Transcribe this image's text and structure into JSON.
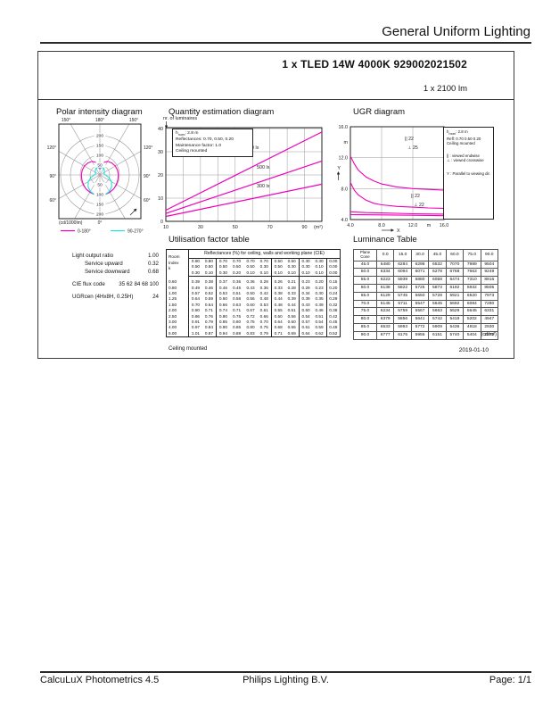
{
  "page": {
    "header_title": "General Uniform Lighting",
    "date": "2019-01-10",
    "footer": {
      "left": "CalcuLuX Photometrics 4.5",
      "center": "Philips Lighting B.V.",
      "right": "Page: 1/1"
    }
  },
  "product": {
    "title": "1 x TLED 14W 4000K 929002021502",
    "lumen": "1 x 2100 lm"
  },
  "colors": {
    "magenta": "#ee00bb",
    "cyan": "#20dde0",
    "grid": "#9a9a9a",
    "ink": "#222222"
  },
  "polar": {
    "title": "Polar intensity diagram",
    "unit_label": "(cd/1000lm)",
    "bottom_label": "0°",
    "angle_labels_top": [
      "150°",
      "180°",
      "150°"
    ],
    "angle_labels_sides": [
      "120°",
      "90°",
      "60°"
    ],
    "ring_values": [
      50,
      100,
      150,
      200
    ],
    "legend": [
      {
        "label": "0-180°"
      },
      {
        "label": "90-270°"
      }
    ],
    "curves": {
      "c0_180": [
        [
          0,
          105
        ],
        [
          15,
          104
        ],
        [
          30,
          102
        ],
        [
          45,
          100
        ],
        [
          60,
          97
        ],
        [
          75,
          95
        ],
        [
          90,
          94
        ],
        [
          105,
          93
        ],
        [
          120,
          91
        ],
        [
          135,
          86
        ],
        [
          150,
          80
        ],
        [
          160,
          68
        ],
        [
          168,
          50
        ],
        [
          174,
          34
        ],
        [
          178,
          32
        ],
        [
          180,
          55
        ]
      ],
      "c90_270": [
        [
          0,
          108
        ],
        [
          15,
          104
        ],
        [
          30,
          97
        ],
        [
          45,
          85
        ],
        [
          60,
          68
        ],
        [
          75,
          47
        ],
        [
          90,
          28
        ],
        [
          105,
          22
        ],
        [
          120,
          26
        ],
        [
          135,
          33
        ],
        [
          150,
          38
        ],
        [
          165,
          41
        ],
        [
          180,
          34
        ]
      ]
    }
  },
  "quantity": {
    "title": "Quantity estimation diagram",
    "ylabel": "nr. of luminaires",
    "x_unit": "(m²)",
    "yticks": [
      0,
      10,
      20,
      30,
      40
    ],
    "xticks": [
      10,
      30,
      50,
      70,
      90
    ],
    "info": {
      "h": "h",
      "h_sub": "room",
      "h_rest": ": 2.8 m",
      "lines": [
        "Reflectances:  0.70, 0.50, 0.20",
        "Maintenance factor:  1.0",
        "Ceiling mounted"
      ]
    },
    "lines": [
      {
        "label": "750 lx",
        "points": [
          [
            10,
            4.8
          ],
          [
            100,
            38.5
          ]
        ]
      },
      {
        "label": "500 lx",
        "points": [
          [
            10,
            3.4
          ],
          [
            100,
            26.0
          ]
        ]
      },
      {
        "label": "300 lx",
        "points": [
          [
            10,
            2.1
          ],
          [
            100,
            16.0
          ]
        ]
      }
    ]
  },
  "ugr": {
    "title": "UGR diagram",
    "xtick_labels": [
      "4.0",
      "8.0",
      "12.0",
      "16.0"
    ],
    "ytick_labels": [
      "4.0",
      "8.0",
      "12.0",
      "16.0"
    ],
    "xtick_values": [
      4,
      8,
      12,
      16
    ],
    "ytick_values": [
      4,
      8,
      12,
      16
    ],
    "meter_label": "m",
    "x_axis_label": "X",
    "y_axis_label": "Y",
    "annotations_top": [
      "|| 22",
      "⊥ 25"
    ],
    "annotations_bottom": [
      "|| 22",
      "⊥ 22"
    ],
    "legend": {
      "h": "h",
      "h_sub": "room",
      "h_rest": ": 2.8 m",
      "lines": [
        "Refl: 0.70 0.50 0.20",
        "Ceiling mounted"
      ],
      "sym1": "|| : viewed endwise",
      "sym2": "⊥ : viewed crosswise",
      "sym3": "Y : Parallel to viewing dir."
    },
    "curves": [
      [
        [
          4,
          12.2
        ],
        [
          4.5,
          11.2
        ],
        [
          5,
          10.4
        ],
        [
          6,
          9.5
        ],
        [
          7,
          9.0
        ],
        [
          8,
          8.6
        ],
        [
          10,
          8.2
        ],
        [
          12,
          8.0
        ],
        [
          14,
          7.9
        ],
        [
          16,
          7.8
        ]
      ],
      [
        [
          4,
          8.8
        ],
        [
          4.5,
          7.8
        ],
        [
          5,
          7.2
        ],
        [
          6,
          6.5
        ],
        [
          7,
          6.1
        ],
        [
          8,
          5.9
        ],
        [
          10,
          5.7
        ],
        [
          12,
          5.6
        ],
        [
          14,
          5.5
        ],
        [
          16,
          5.45
        ]
      ],
      [
        [
          4,
          5.0
        ],
        [
          6,
          4.9
        ],
        [
          8,
          4.85
        ],
        [
          12,
          4.75
        ],
        [
          16,
          4.7
        ]
      ],
      [
        [
          4,
          4.65
        ],
        [
          8,
          4.6
        ],
        [
          12,
          4.55
        ],
        [
          16,
          4.5
        ]
      ]
    ]
  },
  "photometric": {
    "rows": [
      {
        "label": "Light output ratio",
        "value": "1.00"
      },
      {
        "label": "Service upward",
        "value": "0.32"
      },
      {
        "label": "Service downward",
        "value": "0.68"
      },
      {
        "label": "CIE flux code",
        "value": "35 62 84 68 100"
      },
      {
        "label": "UGRcen (4Hx8H, 0.25H)",
        "value": "24"
      }
    ]
  },
  "utilisation": {
    "title": "Utilisation factor table",
    "header": "Reflectances (%) for ceiling, walls and working plane (CIE)",
    "row_header": [
      "Room",
      "Index",
      "k"
    ],
    "ceiling": [
      "0.80",
      "0.80",
      "0.70",
      "0.70",
      "0.70",
      "0.70",
      "0.50",
      "0.50",
      "0.30",
      "0.30",
      "0.00"
    ],
    "walls": [
      "0.50",
      "0.50",
      "0.50",
      "0.50",
      "0.50",
      "0.30",
      "0.50",
      "0.30",
      "0.30",
      "0.10",
      "0.00"
    ],
    "floor": [
      "0.30",
      "0.10",
      "0.30",
      "0.20",
      "0.10",
      "0.10",
      "0.10",
      "0.10",
      "0.10",
      "0.10",
      "0.00"
    ],
    "rows": [
      {
        "k": "0.60",
        "v": [
          "0.39",
          "0.38",
          "0.37",
          "0.36",
          "0.36",
          "0.28",
          "0.26",
          "0.21",
          "0.23",
          "0.20",
          "0.15"
        ]
      },
      {
        "k": "0.80",
        "v": [
          "0.49",
          "0.46",
          "0.46",
          "0.45",
          "0.43",
          "0.36",
          "0.33",
          "0.28",
          "0.29",
          "0.23",
          "0.20"
        ]
      },
      {
        "k": "1.00",
        "v": [
          "0.57",
          "0.52",
          "0.53",
          "0.51",
          "0.50",
          "0.42",
          "0.38",
          "0.33",
          "0.34",
          "0.30",
          "0.24"
        ]
      },
      {
        "k": "1.25",
        "v": [
          "0.64",
          "0.59",
          "0.60",
          "0.58",
          "0.56",
          "0.48",
          "0.44",
          "0.39",
          "0.39",
          "0.35",
          "0.29"
        ]
      },
      {
        "k": "1.50",
        "v": [
          "0.70",
          "0.64",
          "0.66",
          "0.63",
          "0.60",
          "0.53",
          "0.48",
          "0.44",
          "0.43",
          "0.39",
          "0.32"
        ]
      },
      {
        "k": "2.00",
        "v": [
          "0.80",
          "0.71",
          "0.74",
          "0.71",
          "0.67",
          "0.61",
          "0.55",
          "0.51",
          "0.50",
          "0.46",
          "0.38"
        ]
      },
      {
        "k": "2.50",
        "v": [
          "0.86",
          "0.76",
          "0.80",
          "0.76",
          "0.72",
          "0.66",
          "0.60",
          "0.56",
          "0.54",
          "0.51",
          "0.42"
        ]
      },
      {
        "k": "3.00",
        "v": [
          "0.91",
          "0.79",
          "0.85",
          "0.80",
          "0.75",
          "0.70",
          "0.64",
          "0.60",
          "0.57",
          "0.54",
          "0.45"
        ]
      },
      {
        "k": "4.00",
        "v": [
          "0.97",
          "0.84",
          "0.90",
          "0.85",
          "0.80",
          "0.75",
          "0.68",
          "0.65",
          "0.61",
          "0.59",
          "0.49"
        ]
      },
      {
        "k": "5.00",
        "v": [
          "1.01",
          "0.87",
          "0.94",
          "0.88",
          "0.83",
          "0.79",
          "0.71",
          "0.69",
          "0.64",
          "0.62",
          "0.52"
        ]
      }
    ],
    "footnote": "Ceiling mounted"
  },
  "luminance": {
    "title": "Luminance Table",
    "corner": [
      "Plane",
      "Cone"
    ],
    "cols": [
      "0.0",
      "15.0",
      "30.0",
      "45.0",
      "60.0",
      "75.0",
      "90.0"
    ],
    "rows": [
      {
        "angle": "45.0",
        "v": [
          "6480",
          "6284",
          "6298",
          "6532",
          "7070",
          "7989",
          "9504"
        ]
      },
      {
        "angle": "50.0",
        "v": [
          "6334",
          "6094",
          "6071",
          "6278",
          "6768",
          "7663",
          "9249"
        ]
      },
      {
        "angle": "55.0",
        "v": [
          "6223",
          "5939",
          "5880",
          "6058",
          "6474",
          "7310",
          "8916"
        ]
      },
      {
        "angle": "60.0",
        "v": [
          "6138",
          "5822",
          "5725",
          "5873",
          "6192",
          "6932",
          "8505"
        ]
      },
      {
        "angle": "65.0",
        "v": [
          "6129",
          "5745",
          "5650",
          "5728",
          "5921",
          "6520",
          "7973"
        ]
      },
      {
        "angle": "70.0",
        "v": [
          "6145",
          "5711",
          "5547",
          "5645",
          "5692",
          "6084",
          "7280"
        ]
      },
      {
        "angle": "75.0",
        "v": [
          "6234",
          "5759",
          "5567",
          "5663",
          "5529",
          "5645",
          "6331"
        ]
      },
      {
        "angle": "80.0",
        "v": [
          "6379",
          "5856",
          "5641",
          "5742",
          "5419",
          "5202",
          "4947"
        ]
      },
      {
        "angle": "85.0",
        "v": [
          "6533",
          "5993",
          "5772",
          "5909",
          "5436",
          "4918",
          "2930"
        ]
      },
      {
        "angle": "90.0",
        "v": [
          "6777",
          "6175",
          "5955",
          "6151",
          "5740",
          "5404",
          "2373"
        ]
      }
    ],
    "unit": "(cd/m²)"
  }
}
